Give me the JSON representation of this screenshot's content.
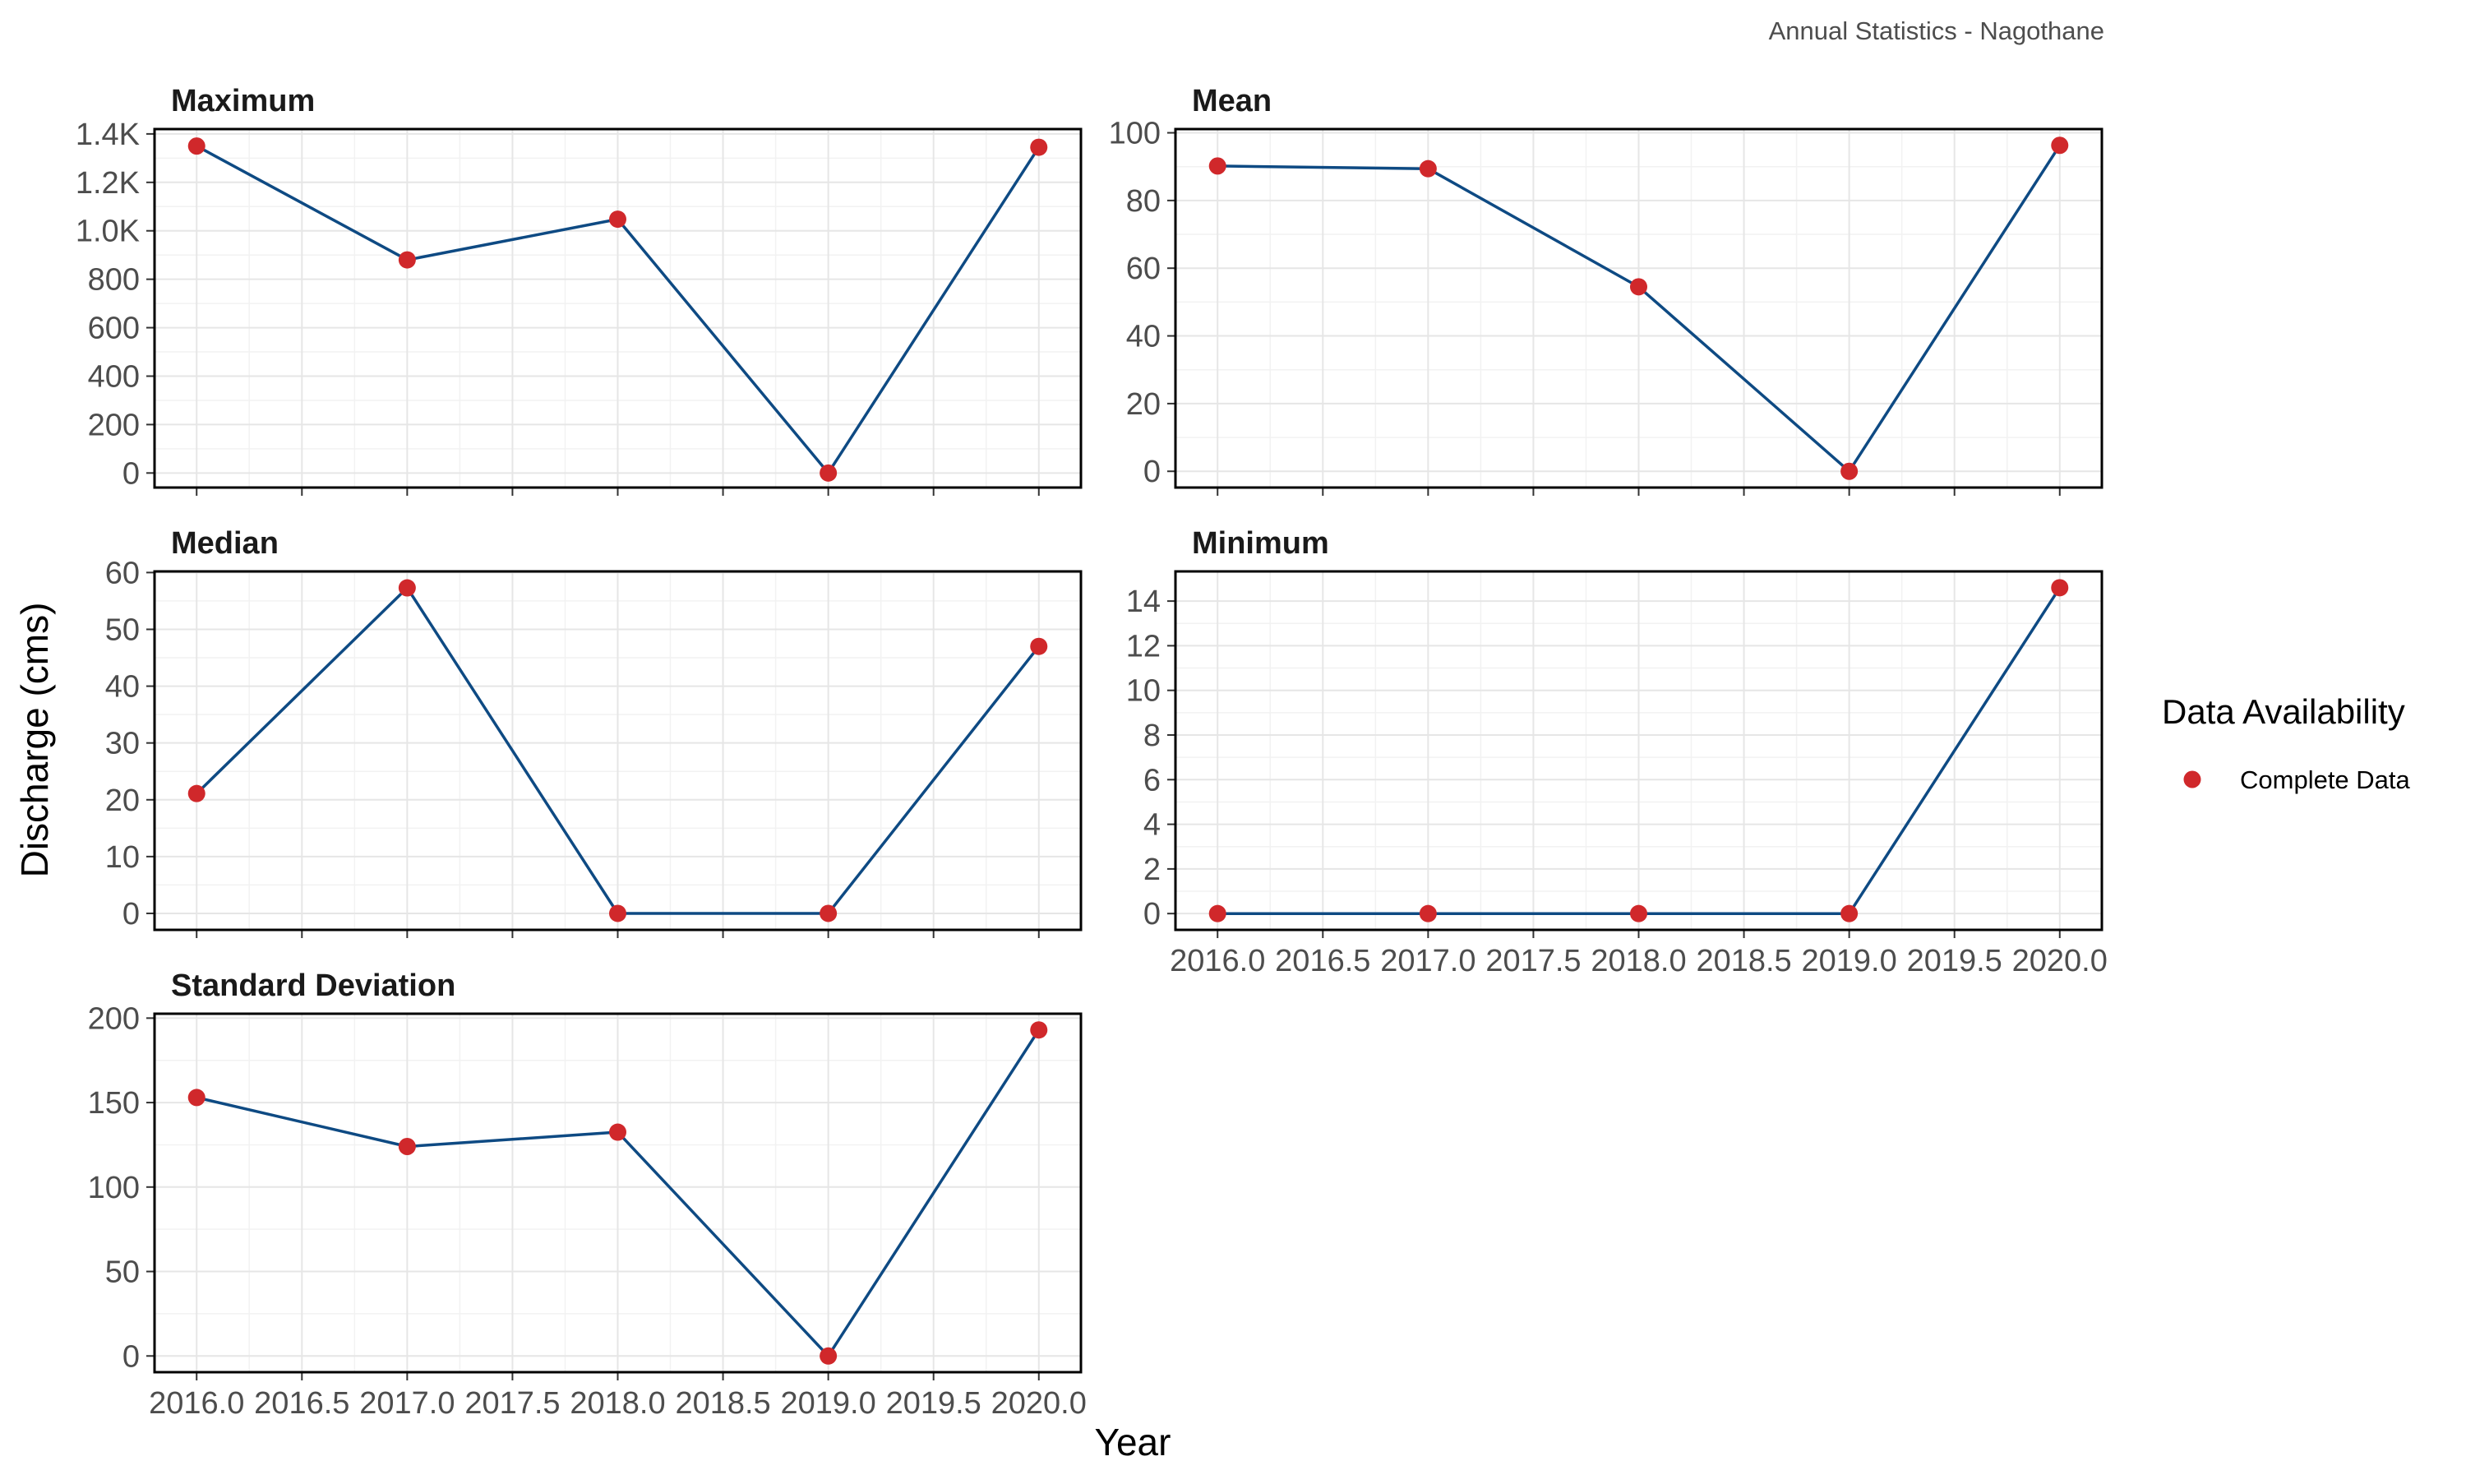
{
  "caption": "Annual Statistics - Nagothane",
  "axes": {
    "xlabel": "Year",
    "ylabel": "Discharge (cms)"
  },
  "legend": {
    "title": "Data Availability",
    "placement": "right",
    "entries": [
      {
        "label": "Complete Data",
        "color": "#d0282b"
      }
    ]
  },
  "colors": {
    "line": "#0e4a83",
    "point": "#d0282b",
    "grid_major": "#e6e6e6",
    "grid_minor": "#f2f2f2",
    "panel_border": "#000000"
  },
  "x_ticks": [
    "2016.0",
    "2016.5",
    "2017.0",
    "2017.5",
    "2018.0",
    "2018.5",
    "2019.0",
    "2019.5",
    "2020.0"
  ],
  "chart_data": [
    {
      "type": "line",
      "title": "Maximum",
      "x": [
        2016,
        2017,
        2018,
        2019,
        2020
      ],
      "y": [
        1350,
        880,
        1048,
        0,
        1345
      ],
      "xlim": [
        2015.8,
        2020.2
      ],
      "ylim": [
        -60,
        1420
      ],
      "yticks": [
        0,
        200,
        400,
        600,
        800,
        1000,
        1200,
        1400
      ],
      "ytick_labels": [
        "0",
        "200",
        "400",
        "600",
        "800",
        "1.0K",
        "1.2K",
        "1.4K"
      ],
      "show_x_ticks": false,
      "grid": true
    },
    {
      "type": "line",
      "title": "Mean",
      "x": [
        2016,
        2017,
        2018,
        2019,
        2020
      ],
      "y": [
        90.2,
        89.4,
        54.5,
        0,
        96.3
      ],
      "xlim": [
        2015.8,
        2020.2
      ],
      "ylim": [
        -4.8,
        101.1
      ],
      "yticks": [
        0,
        20,
        40,
        60,
        80,
        100
      ],
      "ytick_labels": [
        "0",
        "20",
        "40",
        "60",
        "80",
        "100"
      ],
      "show_x_ticks": false,
      "grid": true
    },
    {
      "type": "line",
      "title": "Median",
      "x": [
        2016,
        2017,
        2018,
        2019,
        2020
      ],
      "y": [
        21.1,
        57.3,
        0,
        0,
        47.0
      ],
      "xlim": [
        2015.8,
        2020.2
      ],
      "ylim": [
        -2.9,
        60.2
      ],
      "yticks": [
        0,
        10,
        20,
        30,
        40,
        50,
        60
      ],
      "ytick_labels": [
        "0",
        "10",
        "20",
        "30",
        "40",
        "50",
        "60"
      ],
      "show_x_ticks": false,
      "grid": true
    },
    {
      "type": "line",
      "title": "Minimum",
      "x": [
        2016,
        2017,
        2018,
        2019,
        2020
      ],
      "y": [
        0,
        0,
        0,
        0,
        14.6
      ],
      "xlim": [
        2015.8,
        2020.2
      ],
      "ylim": [
        -0.73,
        15.33
      ],
      "yticks": [
        0,
        2,
        4,
        6,
        8,
        10,
        12,
        14
      ],
      "ytick_labels": [
        "0",
        "2",
        "4",
        "6",
        "8",
        "10",
        "12",
        "14"
      ],
      "show_x_ticks": true,
      "grid": true
    },
    {
      "type": "line",
      "title": "Standard Deviation",
      "x": [
        2016,
        2017,
        2018,
        2019,
        2020
      ],
      "y": [
        153,
        124,
        132.5,
        0,
        193
      ],
      "xlim": [
        2015.8,
        2020.2
      ],
      "ylim": [
        -9.6,
        202.6
      ],
      "yticks": [
        0,
        50,
        100,
        150,
        200
      ],
      "ytick_labels": [
        "0",
        "50",
        "100",
        "150",
        "200"
      ],
      "show_x_ticks": true,
      "grid": true
    }
  ]
}
